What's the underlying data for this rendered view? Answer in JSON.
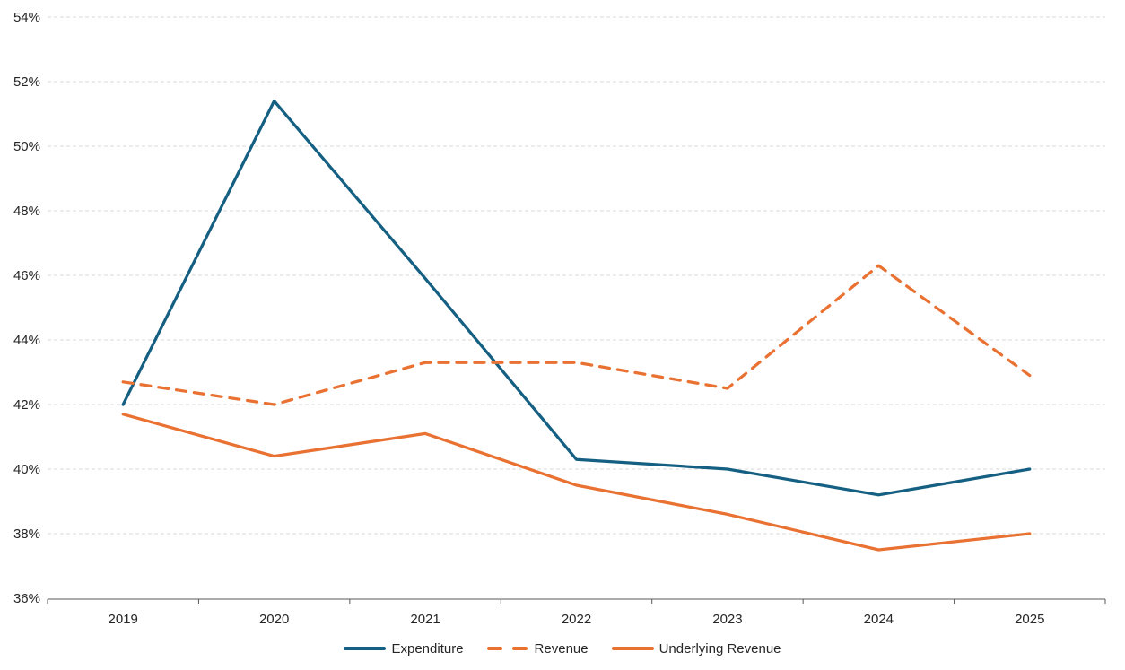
{
  "chart_data": {
    "type": "line",
    "title": "",
    "xlabel": "",
    "ylabel": "",
    "categories": [
      "2019",
      "2020",
      "2021",
      "2022",
      "2023",
      "2024",
      "2025"
    ],
    "series": [
      {
        "name": "Expenditure",
        "color": "#156082",
        "style": "solid",
        "values": [
          42.0,
          51.4,
          45.9,
          40.3,
          40.0,
          39.2,
          40.0
        ]
      },
      {
        "name": "Revenue",
        "color": "#E97132",
        "style": "dashed",
        "values": [
          42.7,
          42.0,
          43.3,
          43.3,
          42.5,
          46.3,
          42.9
        ]
      },
      {
        "name": "Underlying Revenue",
        "color": "#E97132",
        "style": "solid",
        "values": [
          41.7,
          40.4,
          41.1,
          39.5,
          38.6,
          37.5,
          38.0
        ]
      }
    ],
    "y_axis": {
      "min": 36,
      "max": 54,
      "step": 2,
      "format": "percent"
    },
    "y_tick_labels": [
      "54%",
      "52%",
      "50%",
      "48%",
      "46%",
      "44%",
      "42%",
      "40%",
      "38%",
      "36%"
    ],
    "gridline_color": "#D9D9D9",
    "gridline_style": "dashed",
    "axis_color": "#595959",
    "label_color": "#262626",
    "legend_position": "bottom",
    "ylim": [
      36,
      54
    ]
  }
}
